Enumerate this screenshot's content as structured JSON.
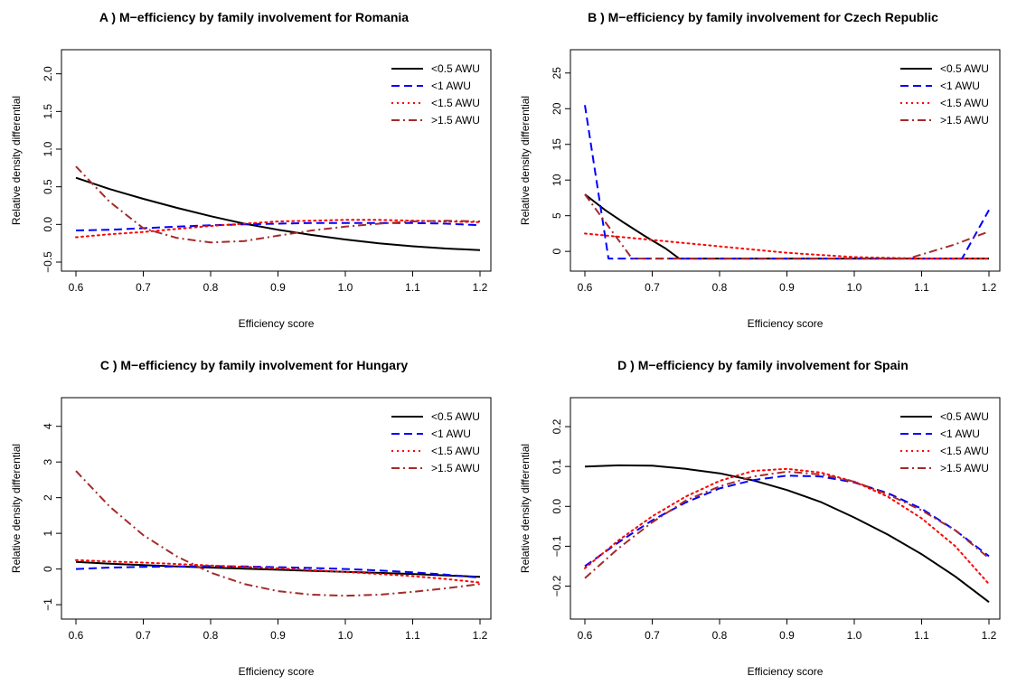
{
  "chart_data": [
    {
      "panel": "A",
      "type": "line",
      "title": "A ) M−efficiency by family involvement for  Romania",
      "xlabel": "Efficiency score",
      "ylabel": "Relative density differential",
      "xlim": [
        0.6,
        1.2
      ],
      "ylim": [
        -0.5,
        2.2
      ],
      "xticks": [
        0.6,
        0.7,
        0.8,
        0.9,
        1.0,
        1.1,
        1.2
      ],
      "xtick_labels": [
        "0.6",
        "0.7",
        "0.8",
        "0.9",
        "1.0",
        "1.1",
        "1.2"
      ],
      "yticks": [
        -0.5,
        0.0,
        0.5,
        1.0,
        1.5,
        2.0
      ],
      "ytick_labels": [
        "−0.5",
        "0.0",
        "0.5",
        "1.0",
        "1.5",
        "2.0"
      ],
      "legend_position": "top-right",
      "x": [
        0.6,
        0.65,
        0.7,
        0.75,
        0.8,
        0.85,
        0.9,
        0.95,
        1.0,
        1.05,
        1.1,
        1.15,
        1.2
      ],
      "series": [
        {
          "name": "<0.5 AWU",
          "color": "#000000",
          "style": "solid",
          "values": [
            0.62,
            0.47,
            0.34,
            0.22,
            0.11,
            0.01,
            -0.07,
            -0.14,
            -0.2,
            -0.25,
            -0.29,
            -0.32,
            -0.34
          ]
        },
        {
          "name": "<1 AWU",
          "color": "#0000ff",
          "style": "dashed",
          "values": [
            -0.08,
            -0.07,
            -0.05,
            -0.03,
            -0.01,
            0.0,
            0.01,
            0.02,
            0.02,
            0.02,
            0.02,
            0.01,
            -0.01
          ]
        },
        {
          "name": "<1.5 AWU",
          "color": "#ff0000",
          "style": "dotted",
          "values": [
            -0.17,
            -0.13,
            -0.1,
            -0.06,
            -0.02,
            0.01,
            0.04,
            0.05,
            0.06,
            0.06,
            0.05,
            0.04,
            0.03
          ]
        },
        {
          "name": ">1.5 AWU",
          "color": "#a52a2a",
          "style": "dashdot",
          "values": [
            0.77,
            0.3,
            -0.05,
            -0.18,
            -0.24,
            -0.22,
            -0.15,
            -0.08,
            -0.03,
            0.01,
            0.04,
            0.05,
            0.04
          ]
        }
      ]
    },
    {
      "panel": "B",
      "type": "line",
      "title": "B ) M−efficiency by family involvement for  Czech Republic",
      "xlabel": "Efficiency score",
      "ylabel": "Relative density differential",
      "xlim": [
        0.6,
        1.2
      ],
      "ylim": [
        -1.5,
        27
      ],
      "xticks": [
        0.6,
        0.7,
        0.8,
        0.9,
        1.0,
        1.1,
        1.2
      ],
      "xtick_labels": [
        "0.6",
        "0.7",
        "0.8",
        "0.9",
        "1.0",
        "1.1",
        "1.2"
      ],
      "yticks": [
        0,
        5,
        10,
        15,
        20,
        25
      ],
      "ytick_labels": [
        "0",
        "5",
        "10",
        "15",
        "20",
        "25"
      ],
      "legend_position": "top-right",
      "series": [
        {
          "name": "<0.5 AWU",
          "color": "#000000",
          "style": "solid",
          "x": [
            0.6,
            0.63,
            0.66,
            0.69,
            0.72,
            0.74,
            1.2
          ],
          "values": [
            8.0,
            5.8,
            3.9,
            2.1,
            0.4,
            -1.0,
            -1.0
          ]
        },
        {
          "name": "<1 AWU",
          "color": "#0000ff",
          "style": "dashed",
          "x": [
            0.6,
            0.635,
            1.16,
            1.2
          ],
          "values": [
            20.5,
            -1.0,
            -1.0,
            5.8
          ]
        },
        {
          "name": "<1.5 AWU",
          "color": "#ff0000",
          "style": "dotted",
          "x": [
            0.6,
            0.7,
            0.8,
            0.9,
            1.0,
            1.1,
            1.2
          ],
          "values": [
            2.5,
            1.6,
            0.7,
            -0.2,
            -0.8,
            -1.0,
            -1.0
          ]
        },
        {
          "name": ">1.5 AWU",
          "color": "#a52a2a",
          "style": "dashdot",
          "x": [
            0.6,
            0.67,
            1.08,
            1.15,
            1.2
          ],
          "values": [
            8.0,
            -1.0,
            -1.0,
            1.0,
            2.8
          ]
        }
      ]
    },
    {
      "panel": "C",
      "type": "line",
      "title": "C ) M−efficiency by family involvement for  Hungary",
      "xlabel": "Efficiency score",
      "ylabel": "Relative density differential",
      "xlim": [
        0.6,
        1.2
      ],
      "ylim": [
        -1.15,
        4.55
      ],
      "xticks": [
        0.6,
        0.7,
        0.8,
        0.9,
        1.0,
        1.1,
        1.2
      ],
      "xtick_labels": [
        "0.6",
        "0.7",
        "0.8",
        "0.9",
        "1.0",
        "1.1",
        "1.2"
      ],
      "yticks": [
        -1,
        0,
        1,
        2,
        3,
        4
      ],
      "ytick_labels": [
        "−1",
        "0",
        "1",
        "2",
        "3",
        "4"
      ],
      "legend_position": "top-right",
      "x": [
        0.6,
        0.65,
        0.7,
        0.75,
        0.8,
        0.85,
        0.9,
        0.95,
        1.0,
        1.05,
        1.1,
        1.15,
        1.2
      ],
      "series": [
        {
          "name": "<0.5 AWU",
          "color": "#000000",
          "style": "solid",
          "values": [
            0.2,
            0.15,
            0.11,
            0.07,
            0.04,
            0.01,
            -0.02,
            -0.05,
            -0.08,
            -0.11,
            -0.14,
            -0.18,
            -0.22
          ]
        },
        {
          "name": "<1 AWU",
          "color": "#0000ff",
          "style": "dashed",
          "values": [
            0.0,
            0.04,
            0.06,
            0.07,
            0.08,
            0.07,
            0.05,
            0.03,
            0.0,
            -0.04,
            -0.09,
            -0.16,
            -0.24
          ]
        },
        {
          "name": "<1.5 AWU",
          "color": "#ff0000",
          "style": "dotted",
          "values": [
            0.25,
            0.21,
            0.18,
            0.14,
            0.1,
            0.06,
            0.02,
            -0.03,
            -0.08,
            -0.14,
            -0.2,
            -0.28,
            -0.38
          ]
        },
        {
          "name": ">1.5 AWU",
          "color": "#a52a2a",
          "style": "dashdot",
          "values": [
            2.75,
            1.75,
            0.95,
            0.35,
            -0.1,
            -0.42,
            -0.62,
            -0.72,
            -0.75,
            -0.72,
            -0.64,
            -0.54,
            -0.42
          ]
        }
      ]
    },
    {
      "panel": "D",
      "type": "line",
      "title": "D ) M−efficiency by family involvement for  Spain",
      "xlabel": "Efficiency score",
      "ylabel": "Relative density differential",
      "xlim": [
        0.6,
        1.2
      ],
      "ylim": [
        -0.26,
        0.25
      ],
      "xticks": [
        0.6,
        0.7,
        0.8,
        0.9,
        1.0,
        1.1,
        1.2
      ],
      "xtick_labels": [
        "0.6",
        "0.7",
        "0.8",
        "0.9",
        "1.0",
        "1.1",
        "1.2"
      ],
      "yticks": [
        -0.2,
        -0.1,
        0.0,
        0.1,
        0.2
      ],
      "ytick_labels": [
        "−0.2",
        "−0.1",
        "0.0",
        "0.1",
        "0.2"
      ],
      "legend_position": "top-right",
      "x": [
        0.6,
        0.65,
        0.7,
        0.75,
        0.8,
        0.85,
        0.9,
        0.95,
        1.0,
        1.05,
        1.1,
        1.15,
        1.2
      ],
      "series": [
        {
          "name": "<0.5 AWU",
          "color": "#000000",
          "style": "solid",
          "values": [
            0.1,
            0.103,
            0.102,
            0.094,
            0.083,
            0.065,
            0.041,
            0.011,
            -0.028,
            -0.071,
            -0.12,
            -0.176,
            -0.24
          ]
        },
        {
          "name": "<1 AWU",
          "color": "#0000ff",
          "style": "dashed",
          "values": [
            -0.15,
            -0.09,
            -0.035,
            0.01,
            0.045,
            0.066,
            0.077,
            0.075,
            0.06,
            0.033,
            -0.006,
            -0.06,
            -0.125
          ]
        },
        {
          "name": "<1.5 AWU",
          "color": "#ff0000",
          "style": "dotted",
          "values": [
            -0.155,
            -0.085,
            -0.025,
            0.025,
            0.064,
            0.089,
            0.094,
            0.085,
            0.062,
            0.024,
            -0.03,
            -0.1,
            -0.195
          ]
        },
        {
          "name": ">1.5 AWU",
          "color": "#a52a2a",
          "style": "dashdot",
          "values": [
            -0.18,
            -0.105,
            -0.04,
            0.015,
            0.05,
            0.075,
            0.087,
            0.08,
            0.062,
            0.03,
            -0.01,
            -0.06,
            -0.13
          ]
        }
      ]
    }
  ]
}
